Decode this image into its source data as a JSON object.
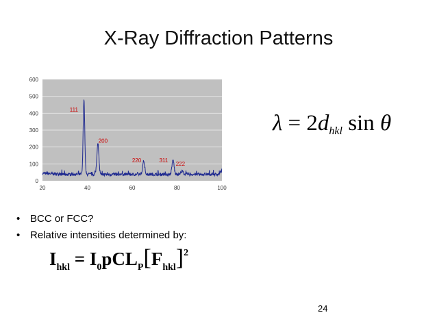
{
  "slide": {
    "title": "X-Ray Diffraction Patterns",
    "page_number": "24"
  },
  "bragg_equation": {
    "lambda": "λ",
    "equals": "=",
    "coef": "2",
    "d": "d",
    "d_sub": "hkl",
    "sin": "sin",
    "theta": "θ"
  },
  "bullets": [
    "BCC or FCC?",
    "Relative intensities determined by:"
  ],
  "intensity_equation": {
    "lhs": "I",
    "lhs_sub": "hkl",
    "equals": "=",
    "i0": "I",
    "i0_sub": "0",
    "factors": "pCL",
    "factors_sub": "P",
    "open_bracket": "[",
    "F": "F",
    "F_sub": "hkl",
    "close_bracket": "]",
    "exponent": "2"
  },
  "colors": {
    "plot_background": "#c0c0c0",
    "trace": "#1f2a90",
    "peak_label": "#cc0000",
    "grid": "#e4e4e4"
  },
  "chart_data": {
    "type": "line",
    "xlim": [
      20,
      100
    ],
    "ylim": [
      0,
      600
    ],
    "xticks": [
      20,
      40,
      60,
      80,
      100
    ],
    "yticks": [
      0,
      100,
      200,
      300,
      400,
      500,
      600
    ],
    "grid": true,
    "background": "baseline ~40 counts with noise",
    "peaks": [
      {
        "x": 38.5,
        "y": 485,
        "width": 0.35
      },
      {
        "x": 44.7,
        "y": 225,
        "width": 0.45
      },
      {
        "x": 65.1,
        "y": 120,
        "width": 0.45
      },
      {
        "x": 78.2,
        "y": 125,
        "width": 0.45
      },
      {
        "x": 82.4,
        "y": 60,
        "width": 0.45
      },
      {
        "x": 99.5,
        "y": 55,
        "width": 0.45
      }
    ],
    "annotations": [
      {
        "text": "111",
        "x": 34.0,
        "y": 410
      },
      {
        "text": "200",
        "x": 47.0,
        "y": 225
      },
      {
        "text": "220",
        "x": 62.0,
        "y": 110
      },
      {
        "text": "311",
        "x": 74.0,
        "y": 110
      },
      {
        "text": "222",
        "x": 81.5,
        "y": 90
      }
    ]
  }
}
